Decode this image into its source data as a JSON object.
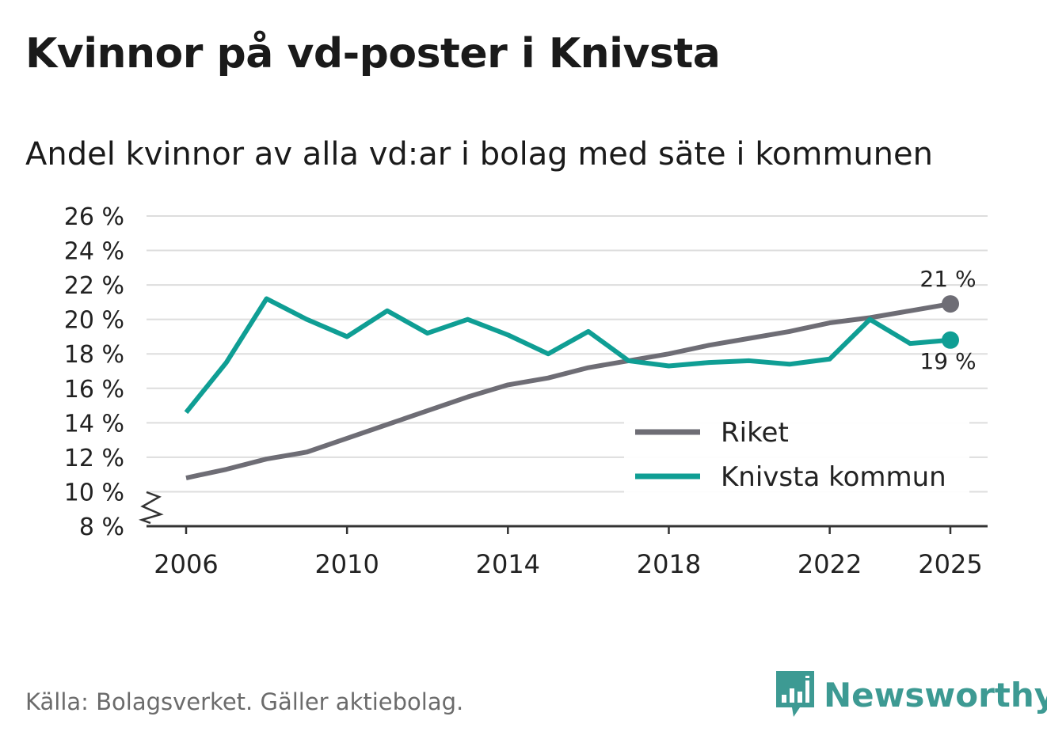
{
  "title": "Kvinnor på vd-poster i Knivsta",
  "subtitle": "Andel kvinnor av alla vd:ar i bolag med säte i kommunen",
  "source": "Källa: Bolagsverket. Gäller aktiebolag.",
  "brand": {
    "name": "Newsworthy",
    "logo_icon": "bar-chart-speech-bubble-icon"
  },
  "colors": {
    "riket": "#6e6d75",
    "knivsta": "#0f9e94",
    "grid": "#dddddd",
    "axis": "#333333"
  },
  "chart_data": {
    "type": "line",
    "title": "Kvinnor på vd-poster i Knivsta",
    "subtitle": "Andel kvinnor av alla vd:ar i bolag med säte i kommunen",
    "xlabel": "",
    "ylabel": "",
    "x": [
      2006,
      2007,
      2008,
      2009,
      2010,
      2011,
      2012,
      2013,
      2014,
      2015,
      2016,
      2017,
      2018,
      2019,
      2020,
      2021,
      2022,
      2023,
      2024,
      2025
    ],
    "xlim": [
      2006,
      2025
    ],
    "ylim": [
      8,
      26
    ],
    "y_axis_break": true,
    "x_ticks": [
      {
        "value": 2006,
        "label": "2006"
      },
      {
        "value": 2010,
        "label": "2010"
      },
      {
        "value": 2014,
        "label": "2014"
      },
      {
        "value": 2018,
        "label": "2018"
      },
      {
        "value": 2022,
        "label": "2022"
      },
      {
        "value": 2025,
        "label": "2025"
      }
    ],
    "y_ticks": [
      {
        "value": 8,
        "label": "8 %"
      },
      {
        "value": 10,
        "label": "10 %"
      },
      {
        "value": 12,
        "label": "12 %"
      },
      {
        "value": 14,
        "label": "14 %"
      },
      {
        "value": 16,
        "label": "16 %"
      },
      {
        "value": 18,
        "label": "18 %"
      },
      {
        "value": 20,
        "label": "20 %"
      },
      {
        "value": 22,
        "label": "22 %"
      },
      {
        "value": 24,
        "label": "24 %"
      },
      {
        "value": 26,
        "label": "26 %"
      }
    ],
    "grid": true,
    "legend_position": "bottom-right",
    "series": [
      {
        "name": "Riket",
        "key": "riket",
        "values": [
          10.8,
          11.3,
          11.9,
          12.3,
          13.1,
          13.9,
          14.7,
          15.5,
          16.2,
          16.6,
          17.2,
          17.6,
          18.0,
          18.5,
          18.9,
          19.3,
          19.8,
          20.1,
          20.5,
          20.9
        ],
        "end_label": "21 %"
      },
      {
        "name": "Knivsta kommun",
        "key": "knivsta",
        "values": [
          14.6,
          17.5,
          21.2,
          20.0,
          19.0,
          20.5,
          19.2,
          20.0,
          19.1,
          18.0,
          19.3,
          17.6,
          17.3,
          17.5,
          17.6,
          17.4,
          17.7,
          20.0,
          18.6,
          18.8
        ],
        "end_label": "19 %"
      }
    ]
  }
}
